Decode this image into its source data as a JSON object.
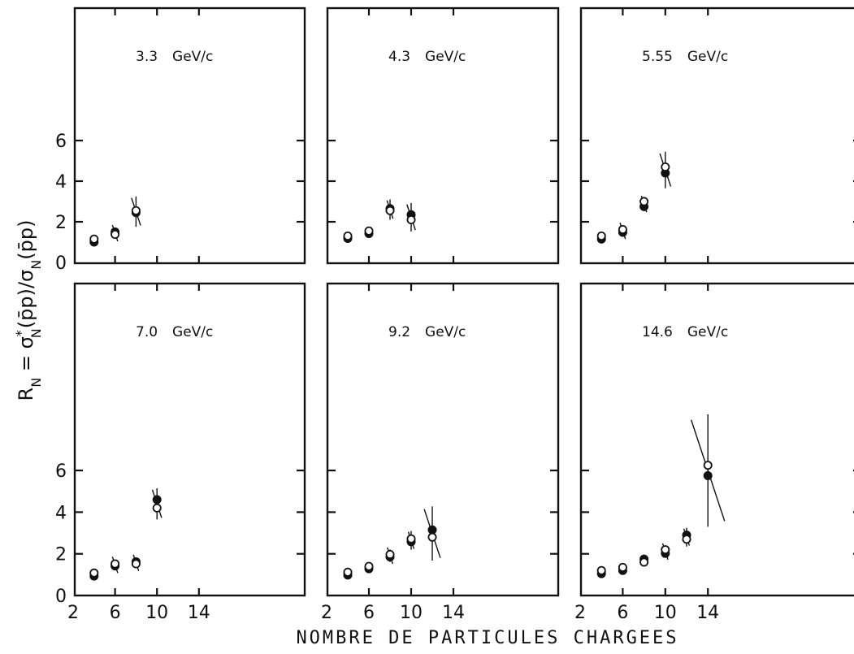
{
  "chart_data": {
    "type": "scatter",
    "xlabel": "NOMBRE DE PARTICULES CHARGEES",
    "ylabel": "R_N = σ*_N(p̄p)/σ_N(p̄p)",
    "ylabel_parts": {
      "r": "R",
      "rsub": "N",
      "eq": " = σ",
      "star": "*",
      "sub1": "N",
      "mid": "(p̄p)/σ",
      "sub2": "N",
      "tail": "(p̄p)"
    },
    "xlim": [
      2,
      14
    ],
    "ylim": [
      0,
      6
    ],
    "x_ticks": [
      2,
      6,
      10,
      14
    ],
    "y_ticks": [
      0,
      2,
      4,
      6
    ],
    "marker_legend": [
      "filled circle",
      "open circle"
    ],
    "panels": [
      {
        "label": "3.3 GeV/c",
        "label_num": "3.3",
        "label_unit": "GeV/c",
        "series": [
          {
            "marker": "filled",
            "x": [
              4,
              6,
              8
            ],
            "y": [
              1.0,
              1.5,
              2.45
            ],
            "err": [
              null,
              0.2,
              0.75
            ]
          },
          {
            "marker": "open",
            "x": [
              4,
              6,
              8
            ],
            "y": [
              1.15,
              1.38,
              2.55
            ]
          }
        ]
      },
      {
        "label": "4.3 GeV/c",
        "label_num": "4.3",
        "label_unit": "GeV/c",
        "series": [
          {
            "marker": "filled",
            "x": [
              4,
              6,
              8,
              10
            ],
            "y": [
              1.18,
              1.42,
              2.65,
              2.35
            ],
            "err": [
              null,
              null,
              0.5,
              0.7
            ]
          },
          {
            "marker": "open",
            "x": [
              4,
              6,
              8,
              10
            ],
            "y": [
              1.3,
              1.55,
              2.55,
              2.1
            ]
          }
        ]
      },
      {
        "label": "5.55 GeV/c",
        "label_num": "5.55",
        "label_unit": "GeV/c",
        "series": [
          {
            "marker": "filled",
            "x": [
              4,
              6,
              8,
              10
            ],
            "y": [
              1.15,
              1.48,
              2.75,
              4.4
            ],
            "err": [
              null,
              0.2,
              0.35,
              0.9
            ]
          },
          {
            "marker": "open",
            "x": [
              4,
              6,
              8,
              10
            ],
            "y": [
              1.3,
              1.62,
              3.0,
              4.7
            ]
          }
        ]
      },
      {
        "label": "7.0 GeV/c",
        "label_num": "7.0",
        "label_unit": "GeV/c",
        "series": [
          {
            "marker": "filled",
            "x": [
              4,
              6,
              8,
              10
            ],
            "y": [
              0.93,
              1.42,
              1.62,
              4.6
            ],
            "err": [
              null,
              0.2,
              0.25,
              0.75
            ]
          },
          {
            "marker": "open",
            "x": [
              4,
              6,
              8,
              10
            ],
            "y": [
              1.08,
              1.52,
              1.52,
              4.2
            ]
          }
        ]
      },
      {
        "label": "9.2 GeV/c",
        "label_num": "9.2",
        "label_unit": "GeV/c",
        "series": [
          {
            "marker": "filled",
            "x": [
              4,
              6,
              8,
              10,
              12
            ],
            "y": [
              0.98,
              1.28,
              1.85,
              2.58,
              3.15
            ],
            "err": [
              null,
              null,
              0.3,
              0.45,
              1.3
            ]
          },
          {
            "marker": "open",
            "x": [
              4,
              6,
              8,
              10,
              12
            ],
            "y": [
              1.12,
              1.4,
              1.97,
              2.72,
              2.8
            ]
          }
        ]
      },
      {
        "label": "14.6 GeV/c",
        "label_num": "14.6",
        "label_unit": "GeV/c",
        "series": [
          {
            "marker": "filled",
            "x": [
              4,
              6,
              8,
              10,
              12,
              14
            ],
            "y": [
              1.05,
              1.2,
              1.75,
              2.02,
              2.9,
              5.75
            ],
            "err": [
              null,
              null,
              null,
              0.2,
              0.45,
              2.7
            ]
          },
          {
            "marker": "open",
            "x": [
              4,
              6,
              8,
              10,
              12,
              14
            ],
            "y": [
              1.2,
              1.35,
              1.6,
              2.2,
              2.7,
              6.25
            ]
          }
        ]
      }
    ]
  }
}
